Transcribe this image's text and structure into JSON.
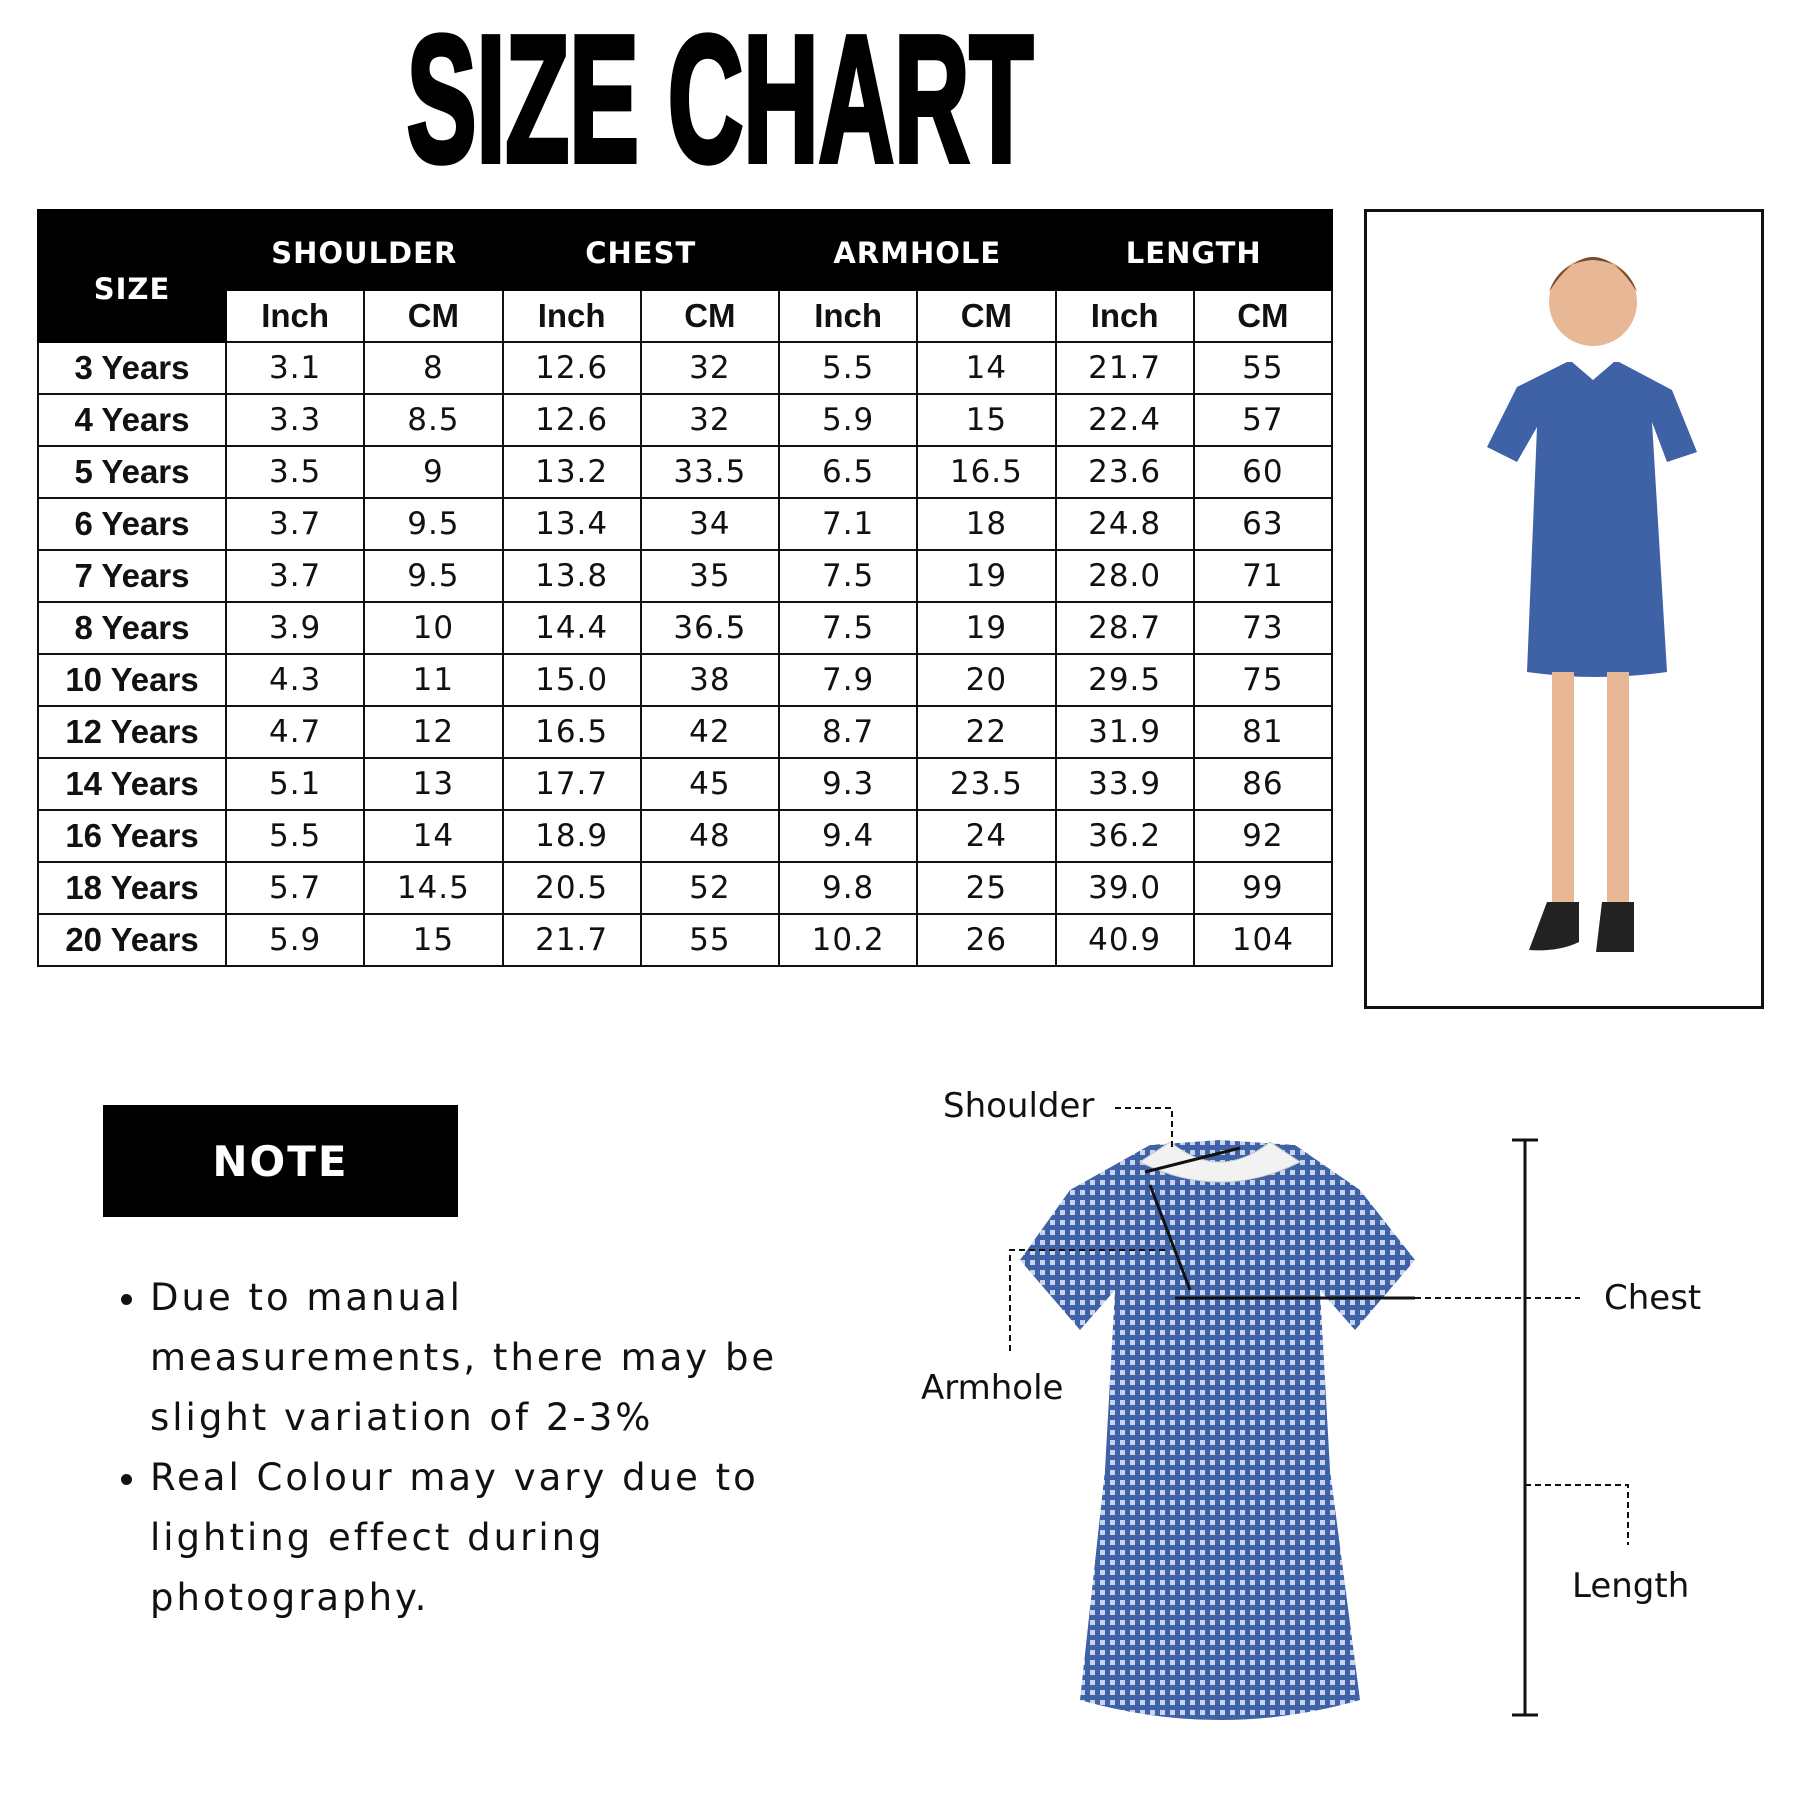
{
  "title": "SIZE CHART",
  "table": {
    "size_header": "SIZE",
    "groups": [
      "SHOULDER",
      "CHEST",
      "ARMHOLE",
      "LENGTH"
    ],
    "units": [
      "Inch",
      "CM",
      "Inch",
      "CM",
      "Inch",
      "CM",
      "Inch",
      "CM"
    ],
    "rows": [
      [
        "3 Years",
        "3.1",
        "8",
        "12.6",
        "32",
        "5.5",
        "14",
        "21.7",
        "55"
      ],
      [
        "4 Years",
        "3.3",
        "8.5",
        "12.6",
        "32",
        "5.9",
        "15",
        "22.4",
        "57"
      ],
      [
        "5 Years",
        "3.5",
        "9",
        "13.2",
        "33.5",
        "6.5",
        "16.5",
        "23.6",
        "60"
      ],
      [
        "6 Years",
        "3.7",
        "9.5",
        "13.4",
        "34",
        "7.1",
        "18",
        "24.8",
        "63"
      ],
      [
        "7 Years",
        "3.7",
        "9.5",
        "13.8",
        "35",
        "7.5",
        "19",
        "28.0",
        "71"
      ],
      [
        "8 Years",
        "3.9",
        "10",
        "14.4",
        "36.5",
        "7.5",
        "19",
        "28.7",
        "73"
      ],
      [
        "10 Years",
        "4.3",
        "11",
        "15.0",
        "38",
        "7.9",
        "20",
        "29.5",
        "75"
      ],
      [
        "12 Years",
        "4.7",
        "12",
        "16.5",
        "42",
        "8.7",
        "22",
        "31.9",
        "81"
      ],
      [
        "14 Years",
        "5.1",
        "13",
        "17.7",
        "45",
        "9.3",
        "23.5",
        "33.9",
        "86"
      ],
      [
        "16 Years",
        "5.5",
        "14",
        "18.9",
        "48",
        "9.4",
        "24",
        "36.2",
        "92"
      ],
      [
        "18 Years",
        "5.7",
        "14.5",
        "20.5",
        "52",
        "9.8",
        "25",
        "39.0",
        "99"
      ],
      [
        "20 Years",
        "5.9",
        "15",
        "21.7",
        "55",
        "10.2",
        "26",
        "40.9",
        "104"
      ]
    ]
  },
  "note": {
    "heading": "NOTE",
    "bullets": [
      "Due to manual measurements, there may be slight variation of 2-3%",
      "Real Colour may vary due to lighting effect during photography."
    ]
  },
  "diagram": {
    "shoulder": "Shoulder",
    "chest": "Chest",
    "armhole": "Armhole",
    "length": "Length"
  },
  "colors": {
    "dress_blue": "#3f62a6",
    "header_bg": "#000000"
  }
}
